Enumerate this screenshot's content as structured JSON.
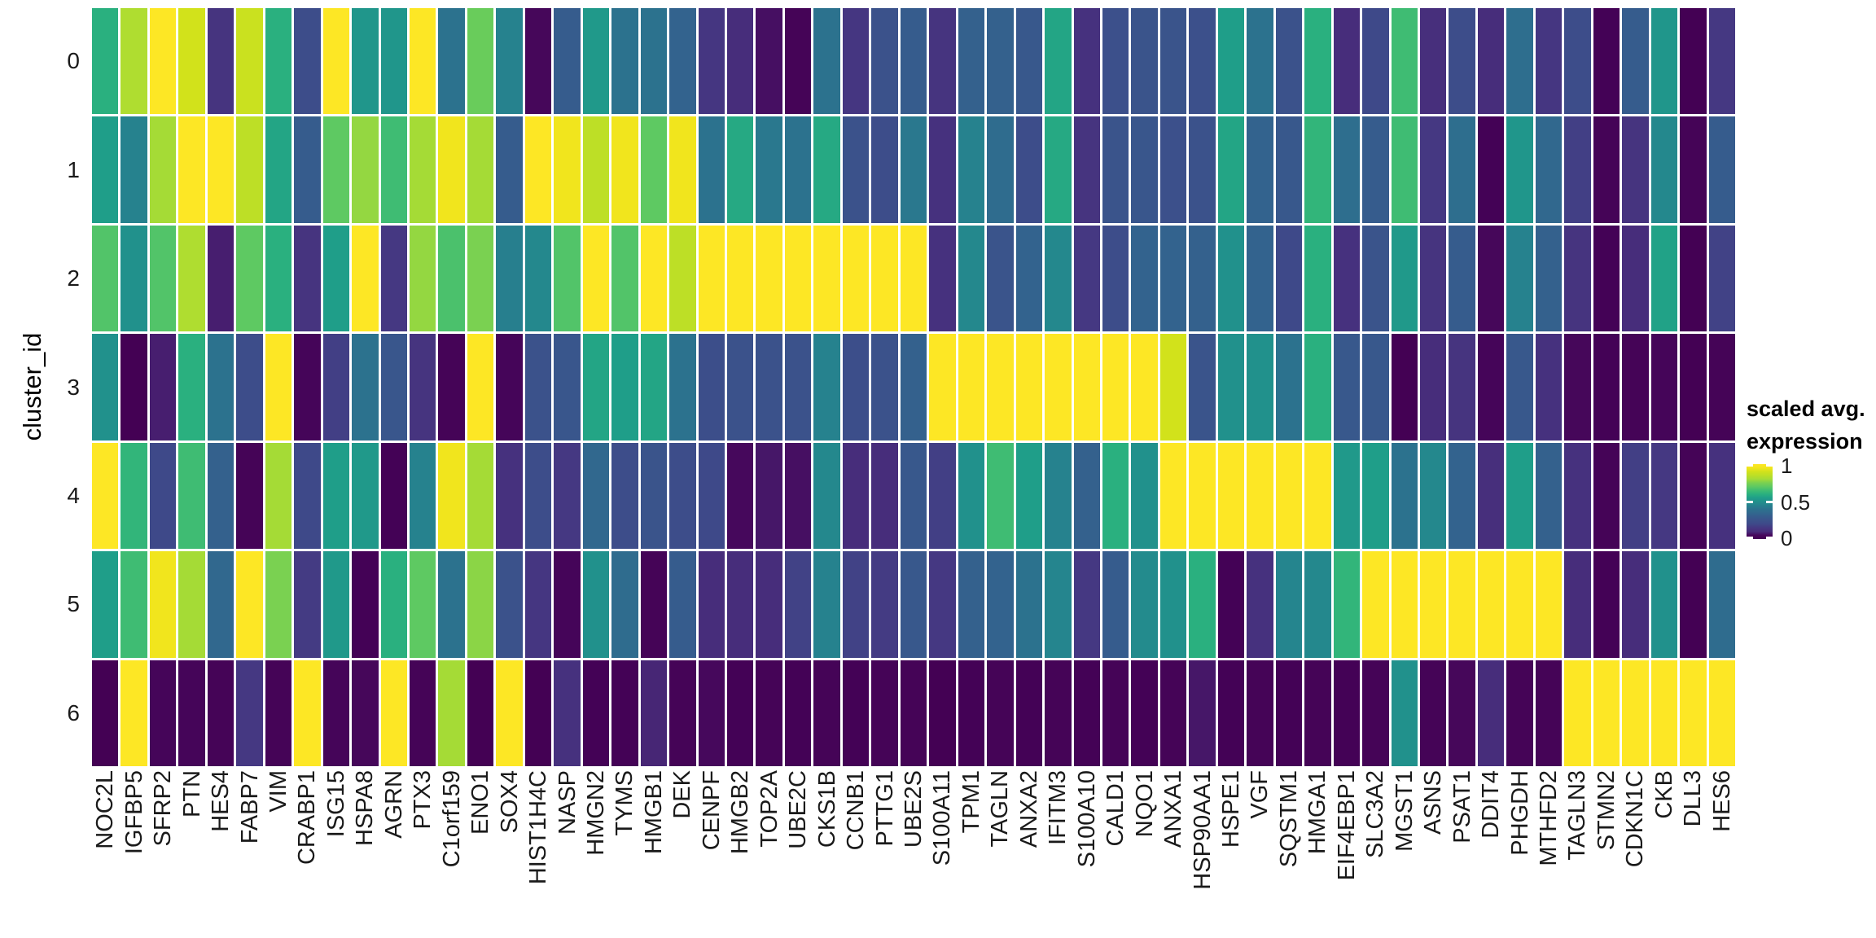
{
  "y_axis": {
    "title": "cluster_id",
    "tick_labels": [
      "0",
      "1",
      "2",
      "3",
      "4",
      "5",
      "6"
    ]
  },
  "legend": {
    "title_line1": "scaled avg.",
    "title_line2": "expression",
    "tick_labels": [
      "1",
      "0.5",
      "0"
    ],
    "tick_values": [
      1,
      0.5,
      0
    ]
  },
  "colors": {
    "background": "#ffffff",
    "cell_gap": "#ffffff",
    "tick_text": "#1a1a1a",
    "viridis_stops": [
      [
        0.0,
        "#440154"
      ],
      [
        0.05,
        "#46085c"
      ],
      [
        0.1,
        "#472d7b"
      ],
      [
        0.15,
        "#453882"
      ],
      [
        0.2,
        "#3e4989"
      ],
      [
        0.25,
        "#3b528b"
      ],
      [
        0.3,
        "#365c8d"
      ],
      [
        0.35,
        "#31688e"
      ],
      [
        0.4,
        "#2c728e"
      ],
      [
        0.45,
        "#26828e"
      ],
      [
        0.5,
        "#21918c"
      ],
      [
        0.55,
        "#1f9e89"
      ],
      [
        0.6,
        "#2ab07f"
      ],
      [
        0.65,
        "#3fbc73"
      ],
      [
        0.7,
        "#5ec962"
      ],
      [
        0.75,
        "#7ad151"
      ],
      [
        0.8,
        "#a5db36"
      ],
      [
        0.85,
        "#bddf26"
      ],
      [
        0.9,
        "#d2e21b"
      ],
      [
        0.95,
        "#f1e51d"
      ],
      [
        1.0,
        "#fde725"
      ]
    ]
  },
  "chart_data": {
    "type": "heatmap",
    "title": "",
    "xlabel": "",
    "ylabel": "cluster_id",
    "legend_title": "scaled avg. expression",
    "colormap": "viridis",
    "value_range": [
      0,
      1
    ],
    "grid": false,
    "legend_position": "right",
    "categories": [
      "NOC2L",
      "IGFBP5",
      "SFRP2",
      "PTN",
      "HES4",
      "FABP7",
      "VIM",
      "CRABP1",
      "ISG15",
      "HSPA8",
      "AGRN",
      "PTX3",
      "C1orf159",
      "ENO1",
      "SOX4",
      "HIST1H4C",
      "NASP",
      "HMGN2",
      "TYMS",
      "HMGB1",
      "DEK",
      "CENPF",
      "HMGB2",
      "TOP2A",
      "UBE2C",
      "CKS1B",
      "CCNB1",
      "PTTG1",
      "UBE2S",
      "S100A11",
      "TPM1",
      "TAGLN",
      "ANXA2",
      "IFITM3",
      "S100A10",
      "CALD1",
      "NQO1",
      "ANXA1",
      "HSP90AA1",
      "HSPE1",
      "VGF",
      "SQSTM1",
      "HMGA1",
      "EIF4EBP1",
      "SLC3A2",
      "MGST1",
      "ASNS",
      "PSAT1",
      "DDIT4",
      "PHGDH",
      "MTHFD2",
      "TAGLN3",
      "STMN2",
      "CDKN1C",
      "CKB",
      "DLL3",
      "HES6"
    ],
    "series": [
      {
        "name": "0",
        "values": [
          0.6,
          0.82,
          1.0,
          0.9,
          0.13,
          0.88,
          0.6,
          0.22,
          1.0,
          0.52,
          0.52,
          1.0,
          0.4,
          0.72,
          0.45,
          0.04,
          0.3,
          0.53,
          0.4,
          0.4,
          0.33,
          0.14,
          0.1,
          0.06,
          0.02,
          0.4,
          0.14,
          0.25,
          0.3,
          0.13,
          0.32,
          0.32,
          0.28,
          0.57,
          0.12,
          0.24,
          0.26,
          0.26,
          0.24,
          0.55,
          0.4,
          0.25,
          0.6,
          0.1,
          0.2,
          0.65,
          0.11,
          0.22,
          0.1,
          0.38,
          0.14,
          0.22,
          0.01,
          0.3,
          0.52,
          0.0,
          0.15
        ]
      },
      {
        "name": "1",
        "values": [
          0.55,
          0.45,
          0.8,
          1.0,
          1.0,
          0.85,
          0.57,
          0.3,
          0.7,
          0.78,
          0.65,
          0.8,
          0.95,
          0.8,
          0.3,
          1.0,
          0.95,
          0.85,
          0.95,
          0.7,
          0.95,
          0.4,
          0.58,
          0.42,
          0.4,
          0.58,
          0.25,
          0.22,
          0.42,
          0.12,
          0.45,
          0.37,
          0.22,
          0.58,
          0.13,
          0.26,
          0.27,
          0.24,
          0.25,
          0.57,
          0.33,
          0.28,
          0.62,
          0.38,
          0.3,
          0.65,
          0.15,
          0.38,
          0.01,
          0.52,
          0.35,
          0.17,
          0.02,
          0.13,
          0.47,
          0.02,
          0.3
        ]
      },
      {
        "name": "2",
        "values": [
          0.68,
          0.5,
          0.68,
          0.82,
          0.08,
          0.7,
          0.6,
          0.13,
          0.55,
          1.0,
          0.15,
          0.78,
          0.67,
          0.75,
          0.44,
          0.47,
          0.68,
          1.0,
          0.68,
          1.0,
          0.85,
          1.0,
          1.0,
          1.0,
          1.0,
          1.0,
          1.0,
          1.0,
          1.0,
          0.12,
          0.47,
          0.26,
          0.33,
          0.47,
          0.15,
          0.22,
          0.33,
          0.33,
          0.32,
          0.5,
          0.33,
          0.2,
          0.6,
          0.12,
          0.26,
          0.53,
          0.13,
          0.3,
          0.04,
          0.45,
          0.32,
          0.13,
          0.01,
          0.1,
          0.56,
          0.0,
          0.18
        ]
      },
      {
        "name": "3",
        "values": [
          0.5,
          0.0,
          0.08,
          0.6,
          0.4,
          0.22,
          1.0,
          0.03,
          0.17,
          0.4,
          0.27,
          0.13,
          0.02,
          1.0,
          0.03,
          0.25,
          0.27,
          0.57,
          0.55,
          0.57,
          0.4,
          0.23,
          0.25,
          0.25,
          0.25,
          0.45,
          0.23,
          0.25,
          0.32,
          1.0,
          1.0,
          1.0,
          1.0,
          1.0,
          1.0,
          1.0,
          1.0,
          0.9,
          0.26,
          0.5,
          0.5,
          0.4,
          0.6,
          0.28,
          0.28,
          0.0,
          0.1,
          0.13,
          0.03,
          0.28,
          0.12,
          0.04,
          0.01,
          0.02,
          0.03,
          0.0,
          0.02
        ]
      },
      {
        "name": "4",
        "values": [
          1.0,
          0.62,
          0.2,
          0.65,
          0.32,
          0.02,
          0.8,
          0.2,
          0.55,
          0.53,
          0.01,
          0.45,
          0.95,
          0.8,
          0.12,
          0.22,
          0.15,
          0.35,
          0.22,
          0.26,
          0.22,
          0.2,
          0.05,
          0.07,
          0.06,
          0.47,
          0.1,
          0.1,
          0.28,
          0.17,
          0.5,
          0.65,
          0.55,
          0.45,
          0.32,
          0.6,
          0.5,
          1.0,
          1.0,
          1.0,
          1.0,
          1.0,
          1.0,
          0.53,
          0.55,
          0.4,
          0.47,
          0.33,
          0.11,
          0.55,
          0.32,
          0.12,
          0.02,
          0.17,
          0.15,
          0.02,
          0.12
        ]
      },
      {
        "name": "5",
        "values": [
          0.55,
          0.65,
          0.95,
          0.8,
          0.35,
          1.0,
          0.75,
          0.16,
          0.53,
          0.01,
          0.6,
          0.7,
          0.4,
          0.77,
          0.25,
          0.14,
          0.03,
          0.5,
          0.37,
          0.02,
          0.3,
          0.1,
          0.1,
          0.1,
          0.18,
          0.45,
          0.18,
          0.16,
          0.28,
          0.15,
          0.32,
          0.33,
          0.4,
          0.46,
          0.15,
          0.3,
          0.48,
          0.5,
          0.6,
          0.01,
          0.12,
          0.46,
          0.47,
          0.62,
          1.0,
          1.0,
          1.0,
          1.0,
          1.0,
          1.0,
          1.0,
          0.1,
          0.01,
          0.1,
          0.5,
          0.0,
          0.37
        ]
      },
      {
        "name": "6",
        "values": [
          0.0,
          1.0,
          0.03,
          0.03,
          0.02,
          0.15,
          0.02,
          1.0,
          0.03,
          0.04,
          1.0,
          0.02,
          0.8,
          0.0,
          1.0,
          0.0,
          0.12,
          0.01,
          0.01,
          0.09,
          0.02,
          0.05,
          0.01,
          0.02,
          0.01,
          0.02,
          0.01,
          0.02,
          0.02,
          0.0,
          0.01,
          0.02,
          0.01,
          0.02,
          0.01,
          0.02,
          0.01,
          0.02,
          0.07,
          0.01,
          0.02,
          0.01,
          0.02,
          0.01,
          0.02,
          0.5,
          0.02,
          0.04,
          0.1,
          0.02,
          0.02,
          1.0,
          1.0,
          1.0,
          1.0,
          1.0,
          1.0
        ]
      }
    ]
  }
}
